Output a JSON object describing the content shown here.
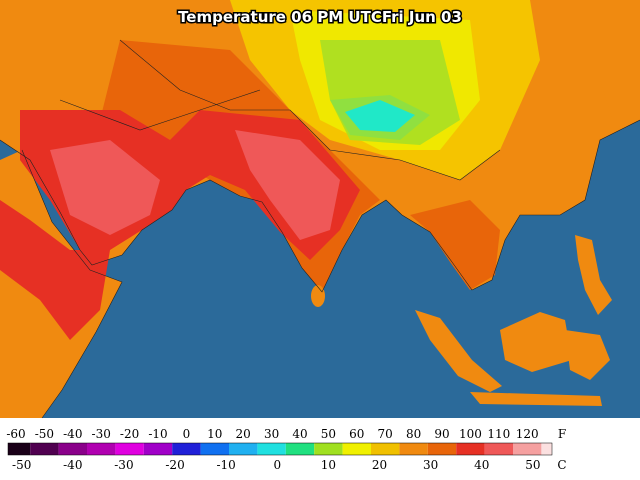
{
  "title": "Temperature 06 PM UTCFri Jun 03",
  "legend": {
    "fahrenheit": {
      "unit": "F",
      "ticks": [
        -60,
        -50,
        -40,
        -30,
        -20,
        -10,
        0,
        10,
        20,
        30,
        40,
        50,
        60,
        70,
        80,
        90,
        100,
        110,
        120
      ]
    },
    "celsius": {
      "unit": "C",
      "ticks": [
        -50,
        -40,
        -30,
        -20,
        -10,
        0,
        10,
        20,
        30,
        40,
        50
      ]
    }
  }
}
